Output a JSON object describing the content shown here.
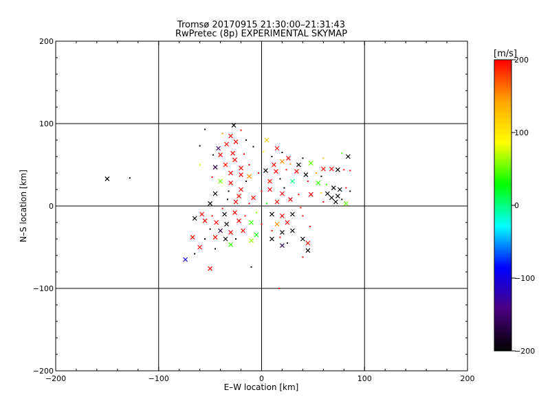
{
  "chart_data": {
    "type": "scatter",
    "title": "Tromsø 20170915 21:30:00–21:31:43",
    "subtitle": "RwPretec (8p) EXPERIMENTAL SKYMAP",
    "xlabel": "E–W location [km]",
    "ylabel": "N–S location [km]",
    "xlim": [
      -200,
      200
    ],
    "ylim": [
      -200,
      200
    ],
    "xticks": [
      -200,
      -100,
      0,
      100,
      200
    ],
    "yticks": [
      -200,
      -100,
      0,
      100,
      200
    ],
    "xtick_labels": [
      "−200",
      "−100",
      "0",
      "100",
      "200"
    ],
    "ytick_labels": [
      "−200",
      "−100",
      "0",
      "100",
      "200"
    ],
    "grid": true,
    "colorbar": {
      "label": "[m/s]",
      "range": [
        -200,
        200
      ],
      "ticks": [
        -200,
        -100,
        0,
        100,
        200
      ],
      "tick_labels": [
        "−200",
        "−100",
        "0",
        "100",
        "200"
      ],
      "colors": [
        "#000000",
        "#4b0082",
        "#0000ff",
        "#00ffff",
        "#00ff00",
        "#ffff00",
        "#ffa500",
        "#ff0000"
      ]
    },
    "marker_types": [
      "x",
      "dot"
    ],
    "points": [
      {
        "x": -150,
        "y": 33,
        "v": -200,
        "m": "x"
      },
      {
        "x": -128,
        "y": 34,
        "v": -200,
        "m": "dot"
      },
      {
        "x": -74,
        "y": -65,
        "v": -100,
        "m": "x"
      },
      {
        "x": -50,
        "y": -76,
        "v": 200,
        "m": "x"
      },
      {
        "x": -10,
        "y": -74,
        "v": -200,
        "m": "dot"
      },
      {
        "x": 17,
        "y": -100,
        "v": 200,
        "m": "dot"
      },
      {
        "x": -55,
        "y": 93,
        "v": -200,
        "m": "dot"
      },
      {
        "x": -60,
        "y": 73,
        "v": -200,
        "m": "dot"
      },
      {
        "x": -27,
        "y": 98,
        "v": -200,
        "m": "x"
      },
      {
        "x": -20,
        "y": 92,
        "v": 200,
        "m": "dot"
      },
      {
        "x": -38,
        "y": 88,
        "v": 150,
        "m": "dot"
      },
      {
        "x": -30,
        "y": 85,
        "v": 200,
        "m": "x"
      },
      {
        "x": -42,
        "y": 70,
        "v": -150,
        "m": "x"
      },
      {
        "x": -34,
        "y": 75,
        "v": 200,
        "m": "x"
      },
      {
        "x": -25,
        "y": 78,
        "v": 200,
        "m": "x"
      },
      {
        "x": -15,
        "y": 80,
        "v": -200,
        "m": "dot"
      },
      {
        "x": -8,
        "y": 72,
        "v": -200,
        "m": "dot"
      },
      {
        "x": 5,
        "y": 80,
        "v": 120,
        "m": "x"
      },
      {
        "x": 2,
        "y": 66,
        "v": 100,
        "m": "dot"
      },
      {
        "x": 15,
        "y": 70,
        "v": 200,
        "m": "x"
      },
      {
        "x": 20,
        "y": 65,
        "v": -200,
        "m": "dot"
      },
      {
        "x": -47,
        "y": 62,
        "v": -200,
        "m": "dot"
      },
      {
        "x": -40,
        "y": 62,
        "v": 200,
        "m": "x"
      },
      {
        "x": -28,
        "y": 64,
        "v": 200,
        "m": "x"
      },
      {
        "x": -17,
        "y": 63,
        "v": 200,
        "m": "dot"
      },
      {
        "x": 10,
        "y": 60,
        "v": -200,
        "m": "dot"
      },
      {
        "x": 26,
        "y": 58,
        "v": 200,
        "m": "x"
      },
      {
        "x": 40,
        "y": 58,
        "v": -200,
        "m": "dot"
      },
      {
        "x": -60,
        "y": 50,
        "v": 80,
        "m": "dot"
      },
      {
        "x": -45,
        "y": 47,
        "v": -170,
        "m": "x"
      },
      {
        "x": -35,
        "y": 50,
        "v": 200,
        "m": "x"
      },
      {
        "x": -20,
        "y": 46,
        "v": 200,
        "m": "x"
      },
      {
        "x": -12,
        "y": 50,
        "v": 200,
        "m": "dot"
      },
      {
        "x": 12,
        "y": 50,
        "v": 200,
        "m": "x"
      },
      {
        "x": 20,
        "y": 54,
        "v": 150,
        "m": "x"
      },
      {
        "x": 28,
        "y": 51,
        "v": 150,
        "m": "dot"
      },
      {
        "x": 36,
        "y": 50,
        "v": -200,
        "m": "x"
      },
      {
        "x": 48,
        "y": 52,
        "v": 50,
        "m": "x"
      },
      {
        "x": 60,
        "y": 58,
        "v": 120,
        "m": "dot"
      },
      {
        "x": 78,
        "y": 64,
        "v": 40,
        "m": "dot"
      },
      {
        "x": 84,
        "y": 60,
        "v": -200,
        "m": "x"
      },
      {
        "x": 68,
        "y": 45,
        "v": 200,
        "m": "x"
      },
      {
        "x": 74,
        "y": 44,
        "v": -200,
        "m": "x"
      },
      {
        "x": 80,
        "y": 44,
        "v": 200,
        "m": "dot"
      },
      {
        "x": 86,
        "y": 43,
        "v": 200,
        "m": "dot"
      },
      {
        "x": -30,
        "y": 40,
        "v": 200,
        "m": "x"
      },
      {
        "x": -20,
        "y": 38,
        "v": 200,
        "m": "x"
      },
      {
        "x": -12,
        "y": 36,
        "v": 150,
        "m": "x"
      },
      {
        "x": -3,
        "y": 40,
        "v": 200,
        "m": "dot"
      },
      {
        "x": 4,
        "y": 43,
        "v": -200,
        "m": "x"
      },
      {
        "x": 14,
        "y": 42,
        "v": 200,
        "m": "x"
      },
      {
        "x": 24,
        "y": 44,
        "v": 200,
        "m": "dot"
      },
      {
        "x": 34,
        "y": 42,
        "v": 200,
        "m": "x"
      },
      {
        "x": 43,
        "y": 38,
        "v": -200,
        "m": "x"
      },
      {
        "x": 53,
        "y": 40,
        "v": 150,
        "m": "dot"
      },
      {
        "x": 58,
        "y": 36,
        "v": -200,
        "m": "dot"
      },
      {
        "x": -40,
        "y": 30,
        "v": 50,
        "m": "x"
      },
      {
        "x": -30,
        "y": 28,
        "v": 200,
        "m": "x"
      },
      {
        "x": -15,
        "y": 30,
        "v": -200,
        "m": "dot"
      },
      {
        "x": 8,
        "y": 30,
        "v": 200,
        "m": "x"
      },
      {
        "x": 18,
        "y": 33,
        "v": -200,
        "m": "dot"
      },
      {
        "x": 30,
        "y": 30,
        "v": 0,
        "m": "x"
      },
      {
        "x": 45,
        "y": 30,
        "v": 200,
        "m": "dot"
      },
      {
        "x": 55,
        "y": 28,
        "v": 40,
        "m": "x"
      },
      {
        "x": 63,
        "y": 26,
        "v": 40,
        "m": "dot"
      },
      {
        "x": 70,
        "y": 22,
        "v": -200,
        "m": "x"
      },
      {
        "x": 76,
        "y": 20,
        "v": -200,
        "m": "x"
      },
      {
        "x": 82,
        "y": 22,
        "v": 200,
        "m": "dot"
      },
      {
        "x": 86,
        "y": 18,
        "v": -200,
        "m": "dot"
      },
      {
        "x": -45,
        "y": 15,
        "v": -200,
        "m": "x"
      },
      {
        "x": -32,
        "y": 18,
        "v": -200,
        "m": "dot"
      },
      {
        "x": -20,
        "y": 20,
        "v": 200,
        "m": "x"
      },
      {
        "x": 0,
        "y": 18,
        "v": 200,
        "m": "dot"
      },
      {
        "x": 20,
        "y": 15,
        "v": 200,
        "m": "x"
      },
      {
        "x": 36,
        "y": 14,
        "v": 200,
        "m": "dot"
      },
      {
        "x": 48,
        "y": 14,
        "v": 200,
        "m": "x"
      },
      {
        "x": 58,
        "y": 16,
        "v": 120,
        "m": "dot"
      },
      {
        "x": 64,
        "y": 15,
        "v": -200,
        "m": "x"
      },
      {
        "x": 68,
        "y": 10,
        "v": -200,
        "m": "x"
      },
      {
        "x": 74,
        "y": 12,
        "v": -200,
        "m": "x"
      },
      {
        "x": 78,
        "y": 8,
        "v": -200,
        "m": "dot"
      },
      {
        "x": 72,
        "y": 5,
        "v": -200,
        "m": "x"
      },
      {
        "x": 82,
        "y": 3,
        "v": 50,
        "m": "x"
      },
      {
        "x": 60,
        "y": 5,
        "v": 200,
        "m": "dot"
      },
      {
        "x": -50,
        "y": 3,
        "v": -200,
        "m": "x"
      },
      {
        "x": -33,
        "y": 8,
        "v": -200,
        "m": "dot"
      },
      {
        "x": -25,
        "y": 5,
        "v": 200,
        "m": "x"
      },
      {
        "x": -12,
        "y": 3,
        "v": 200,
        "m": "dot"
      },
      {
        "x": 5,
        "y": 3,
        "v": 30,
        "m": "dot"
      },
      {
        "x": 15,
        "y": 5,
        "v": 200,
        "m": "x"
      },
      {
        "x": -58,
        "y": -10,
        "v": 200,
        "m": "x"
      },
      {
        "x": -48,
        "y": -12,
        "v": 200,
        "m": "dot"
      },
      {
        "x": -36,
        "y": -10,
        "v": -200,
        "m": "x"
      },
      {
        "x": -26,
        "y": -8,
        "v": 200,
        "m": "x"
      },
      {
        "x": -16,
        "y": -12,
        "v": 200,
        "m": "dot"
      },
      {
        "x": -5,
        "y": -8,
        "v": 60,
        "m": "dot"
      },
      {
        "x": 10,
        "y": -10,
        "v": -200,
        "m": "x"
      },
      {
        "x": 20,
        "y": -12,
        "v": 200,
        "m": "x"
      },
      {
        "x": 30,
        "y": -10,
        "v": -200,
        "m": "x"
      },
      {
        "x": 40,
        "y": -12,
        "v": 200,
        "m": "dot"
      },
      {
        "x": -65,
        "y": -15,
        "v": -200,
        "m": "x"
      },
      {
        "x": -55,
        "y": -18,
        "v": 200,
        "m": "x"
      },
      {
        "x": -44,
        "y": -20,
        "v": 200,
        "m": "x"
      },
      {
        "x": -34,
        "y": -22,
        "v": -200,
        "m": "x"
      },
      {
        "x": -22,
        "y": -18,
        "v": 200,
        "m": "x"
      },
      {
        "x": -10,
        "y": -20,
        "v": 40,
        "m": "x"
      },
      {
        "x": 0,
        "y": -22,
        "v": 200,
        "m": "dot"
      },
      {
        "x": 15,
        "y": -22,
        "v": 150,
        "m": "x"
      },
      {
        "x": 25,
        "y": -20,
        "v": 200,
        "m": "x"
      },
      {
        "x": 47,
        "y": -25,
        "v": 200,
        "m": "dot"
      },
      {
        "x": -50,
        "y": -28,
        "v": -200,
        "m": "dot"
      },
      {
        "x": -40,
        "y": -30,
        "v": -170,
        "m": "x"
      },
      {
        "x": -30,
        "y": -32,
        "v": 200,
        "m": "x"
      },
      {
        "x": -18,
        "y": -30,
        "v": 200,
        "m": "x"
      },
      {
        "x": -5,
        "y": -35,
        "v": 30,
        "m": "x"
      },
      {
        "x": 10,
        "y": -30,
        "v": 200,
        "m": "dot"
      },
      {
        "x": 20,
        "y": -32,
        "v": -200,
        "m": "x"
      },
      {
        "x": 30,
        "y": -30,
        "v": -200,
        "m": "x"
      },
      {
        "x": -67,
        "y": -38,
        "v": 200,
        "m": "x"
      },
      {
        "x": -55,
        "y": -40,
        "v": -200,
        "m": "dot"
      },
      {
        "x": -45,
        "y": -38,
        "v": 200,
        "m": "x"
      },
      {
        "x": -35,
        "y": -40,
        "v": -200,
        "m": "x"
      },
      {
        "x": -25,
        "y": -40,
        "v": -200,
        "m": "dot"
      },
      {
        "x": -10,
        "y": -42,
        "v": 60,
        "m": "x"
      },
      {
        "x": 10,
        "y": -40,
        "v": -200,
        "m": "x"
      },
      {
        "x": 18,
        "y": -38,
        "v": 200,
        "m": "dot"
      },
      {
        "x": 25,
        "y": -45,
        "v": -200,
        "m": "dot"
      },
      {
        "x": 40,
        "y": -40,
        "v": -200,
        "m": "x"
      },
      {
        "x": 45,
        "y": -45,
        "v": 200,
        "m": "x"
      },
      {
        "x": -60,
        "y": -50,
        "v": 200,
        "m": "x"
      },
      {
        "x": -45,
        "y": -52,
        "v": -200,
        "m": "dot"
      },
      {
        "x": -30,
        "y": -47,
        "v": 40,
        "m": "x"
      },
      {
        "x": 20,
        "y": -48,
        "v": -170,
        "m": "x"
      },
      {
        "x": 45,
        "y": -54,
        "v": -200,
        "m": "x"
      },
      {
        "x": 40,
        "y": -62,
        "v": 200,
        "m": "dot"
      },
      {
        "x": -65,
        "y": -58,
        "v": -200,
        "m": "dot"
      },
      {
        "x": -22,
        "y": 12,
        "v": 200,
        "m": "x"
      },
      {
        "x": -8,
        "y": 10,
        "v": 200,
        "m": "x"
      },
      {
        "x": 28,
        "y": 8,
        "v": 200,
        "m": "x"
      },
      {
        "x": 38,
        "y": -2,
        "v": 200,
        "m": "dot"
      },
      {
        "x": -38,
        "y": -3,
        "v": 200,
        "m": "dot"
      },
      {
        "x": 8,
        "y": 20,
        "v": 200,
        "m": "x"
      },
      {
        "x": 22,
        "y": 22,
        "v": -200,
        "m": "dot"
      },
      {
        "x": -26,
        "y": 56,
        "v": 200,
        "m": "x"
      },
      {
        "x": -48,
        "y": 35,
        "v": 200,
        "m": "dot"
      },
      {
        "x": 60,
        "y": 45,
        "v": 200,
        "m": "x"
      }
    ]
  }
}
